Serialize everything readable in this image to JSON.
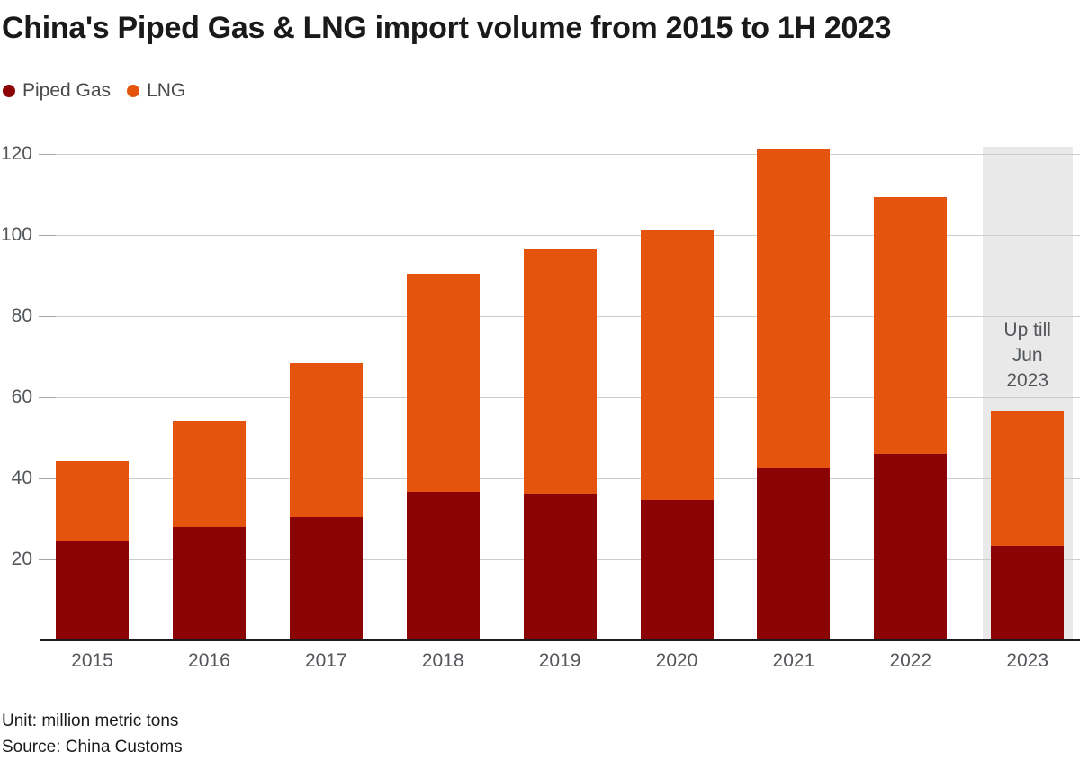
{
  "page": {
    "background": "#ffffff"
  },
  "header": {
    "title": "China's Piped Gas & LNG import volume from 2015 to 1H 2023"
  },
  "footer": {
    "unit_label": "Unit: million metric tons",
    "source_label": "Source: China Customs"
  },
  "chart_data": {
    "type": "bar",
    "stacked": true,
    "title": "China's Piped Gas & LNG import volume from 2015 to 1H 2023",
    "categories": [
      "2015",
      "2016",
      "2017",
      "2018",
      "2019",
      "2020",
      "2021",
      "2022",
      "2023"
    ],
    "series": [
      {
        "name": "Piped Gas",
        "color": "#8b0304",
        "values": [
          24.5,
          28.0,
          30.4,
          36.6,
          36.3,
          34.7,
          42.5,
          45.9,
          23.3
        ]
      },
      {
        "name": "LNG",
        "color": "#e4540d",
        "values": [
          19.8,
          26.1,
          38.1,
          53.8,
          60.2,
          66.6,
          78.9,
          63.4,
          33.4
        ]
      }
    ],
    "totals": [
      44.3,
      54.1,
      68.5,
      90.4,
      96.5,
      101.3,
      121.4,
      109.3,
      56.7
    ],
    "xlabel": "",
    "ylabel": "million metric tons",
    "ylim": [
      0,
      128
    ],
    "yticks": [
      20,
      40,
      60,
      80,
      100,
      120
    ],
    "grid": "horizontal",
    "legend_position": "top-left",
    "highlight": {
      "category": "2023",
      "label_lines": [
        "Up till",
        "Jun",
        "2023"
      ],
      "band_color": "#e9e9e9",
      "label_color": "#53565a"
    },
    "colors": {
      "axis_line": "#1a1a1a",
      "gridline": "#cccccc",
      "tick": "#a6a6a6",
      "tick_label": "#53565a",
      "category_label": "#53565a"
    }
  }
}
